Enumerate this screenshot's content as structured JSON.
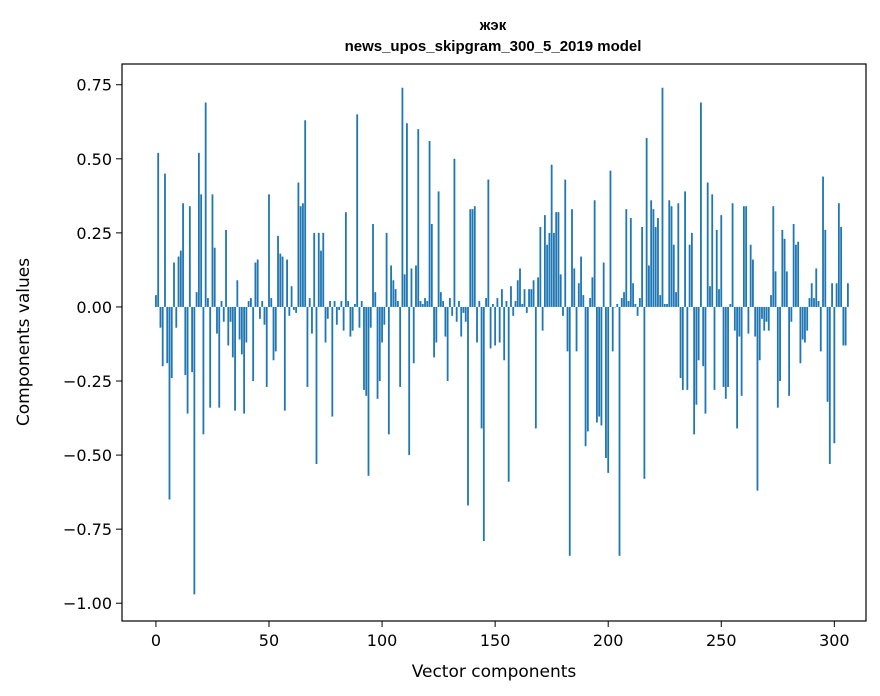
{
  "chart_data": {
    "type": "bar",
    "title": "жэк",
    "subtitle": "news_upos_skipgram_300_5_2019 model",
    "xlabel": "Vector components",
    "ylabel": "Components values",
    "xlim": [
      -15,
      314
    ],
    "ylim": [
      -1.06,
      0.82
    ],
    "xticks": [
      0,
      50,
      100,
      150,
      200,
      250,
      300
    ],
    "xtick_labels": [
      "0",
      "50",
      "100",
      "150",
      "200",
      "250",
      "300"
    ],
    "yticks": [
      0.75,
      0.5,
      0.25,
      0.0,
      -0.25,
      -0.5,
      -0.75,
      -1.0
    ],
    "ytick_labels": [
      "0.75",
      "0.50",
      "0.25",
      "0.00",
      "−0.25",
      "−0.50",
      "−0.75",
      "−1.00"
    ],
    "bar_color": "#1f77b4",
    "grid": false,
    "values": [
      0.04,
      0.52,
      -0.07,
      -0.2,
      0.45,
      -0.19,
      -0.65,
      -0.24,
      0.15,
      -0.07,
      0.17,
      0.19,
      0.35,
      -0.23,
      -0.36,
      0.34,
      -0.22,
      -0.97,
      0.05,
      0.52,
      0.38,
      -0.43,
      0.69,
      0.03,
      -0.34,
      0.38,
      0.2,
      -0.09,
      -0.34,
      0.02,
      -0.05,
      0.26,
      -0.13,
      -0.05,
      -0.17,
      -0.35,
      0.09,
      -0.11,
      -0.16,
      -0.36,
      -0.12,
      0.02,
      0.03,
      -0.25,
      0.15,
      0.16,
      -0.04,
      0.02,
      -0.06,
      -0.27,
      0.38,
      0.03,
      -0.18,
      -0.15,
      0.24,
      0.18,
      0.17,
      -0.35,
      0.16,
      -0.03,
      0.07,
      -0.01,
      -0.02,
      0.42,
      0.34,
      0.35,
      0.63,
      -0.27,
      0.03,
      -0.09,
      0.25,
      -0.53,
      0.25,
      0.19,
      0.25,
      -0.12,
      -0.04,
      0.02,
      -0.37,
      0.02,
      -0.06,
      -0.01,
      0.02,
      -0.08,
      0.32,
      0.02,
      -0.1,
      -0.08,
      0.01,
      0.65,
      -0.07,
      0.02,
      -0.28,
      -0.3,
      -0.57,
      -0.07,
      0.28,
      0.05,
      -0.31,
      -0.25,
      -0.12,
      -0.06,
      0.25,
      -0.43,
      0.14,
      0.09,
      0.06,
      0.02,
      -0.27,
      0.74,
      0.11,
      0.62,
      -0.5,
      0.13,
      -0.19,
      0.14,
      0.6,
      0.02,
      0.01,
      0.03,
      0.02,
      0.56,
      0.28,
      -0.17,
      -0.12,
      0.39,
      0.05,
      0.02,
      -0.1,
      -0.25,
      0.03,
      -0.03,
      0.5,
      -0.05,
      0.02,
      -0.1,
      -0.02,
      -0.05,
      -0.67,
      0.33,
      0.33,
      0.34,
      -0.12,
      0.02,
      -0.41,
      -0.79,
      0.03,
      0.43,
      -0.14,
      0.01,
      -0.13,
      0.03,
      -0.12,
      0.06,
      -0.18,
      0.02,
      -0.59,
      0.07,
      -0.03,
      0.02,
      0.09,
      0.13,
      0.01,
      0.06,
      -0.02,
      0.06,
      0.06,
      0.09,
      -0.41,
      0.1,
      0.27,
      -0.08,
      0.31,
      0.21,
      0.25,
      0.48,
      0.25,
      0.32,
      0.32,
      0.11,
      -0.03,
      0.43,
      -0.15,
      -0.84,
      0.33,
      0.13,
      -0.15,
      0.08,
      0.17,
      0.04,
      -0.47,
      -0.42,
      0.03,
      0.1,
      0.36,
      -0.39,
      -0.37,
      -0.4,
      0.15,
      -0.51,
      -0.56,
      0.46,
      -0.15,
      0.0,
      0.01,
      -0.84,
      0.03,
      0.05,
      0.33,
      0.02,
      0.3,
      0.08,
      0.01,
      -0.03,
      0.03,
      0.27,
      -0.58,
      0.57,
      0.14,
      0.36,
      0.33,
      0.27,
      0.3,
      0.04,
      0.74,
      0.01,
      0.01,
      0.36,
      0.34,
      0.21,
      0.05,
      0.35,
      -0.24,
      -0.28,
      0.39,
      -0.28,
      0.21,
      0.25,
      -0.43,
      -0.33,
      -0.18,
      0.69,
      -0.2,
      -0.36,
      0.42,
      0.07,
      0.38,
      -0.28,
      0.26,
      0.06,
      0.31,
      -0.27,
      -0.31,
      -0.27,
      0.01,
      0.35,
      -0.08,
      -0.41,
      -0.1,
      -0.3,
      0.34,
      0.34,
      -0.09,
      0.21,
      0.16,
      -0.1,
      -0.62,
      -0.18,
      -0.04,
      -0.08,
      -0.05,
      -0.08,
      0.04,
      0.34,
      0.12,
      -0.34,
      -0.25,
      0.26,
      0.23,
      0.12,
      -0.3,
      -0.05,
      0.28,
      0.21,
      0.22,
      -0.19,
      -0.11,
      -0.12,
      -0.08,
      0.03,
      0.08,
      0.03,
      0.13,
      0.02,
      -0.15,
      0.44,
      0.26,
      -0.32,
      -0.53,
      0.08,
      -0.46,
      0.08,
      0.35,
      0.27,
      -0.13,
      -0.13,
      0.08
    ]
  }
}
